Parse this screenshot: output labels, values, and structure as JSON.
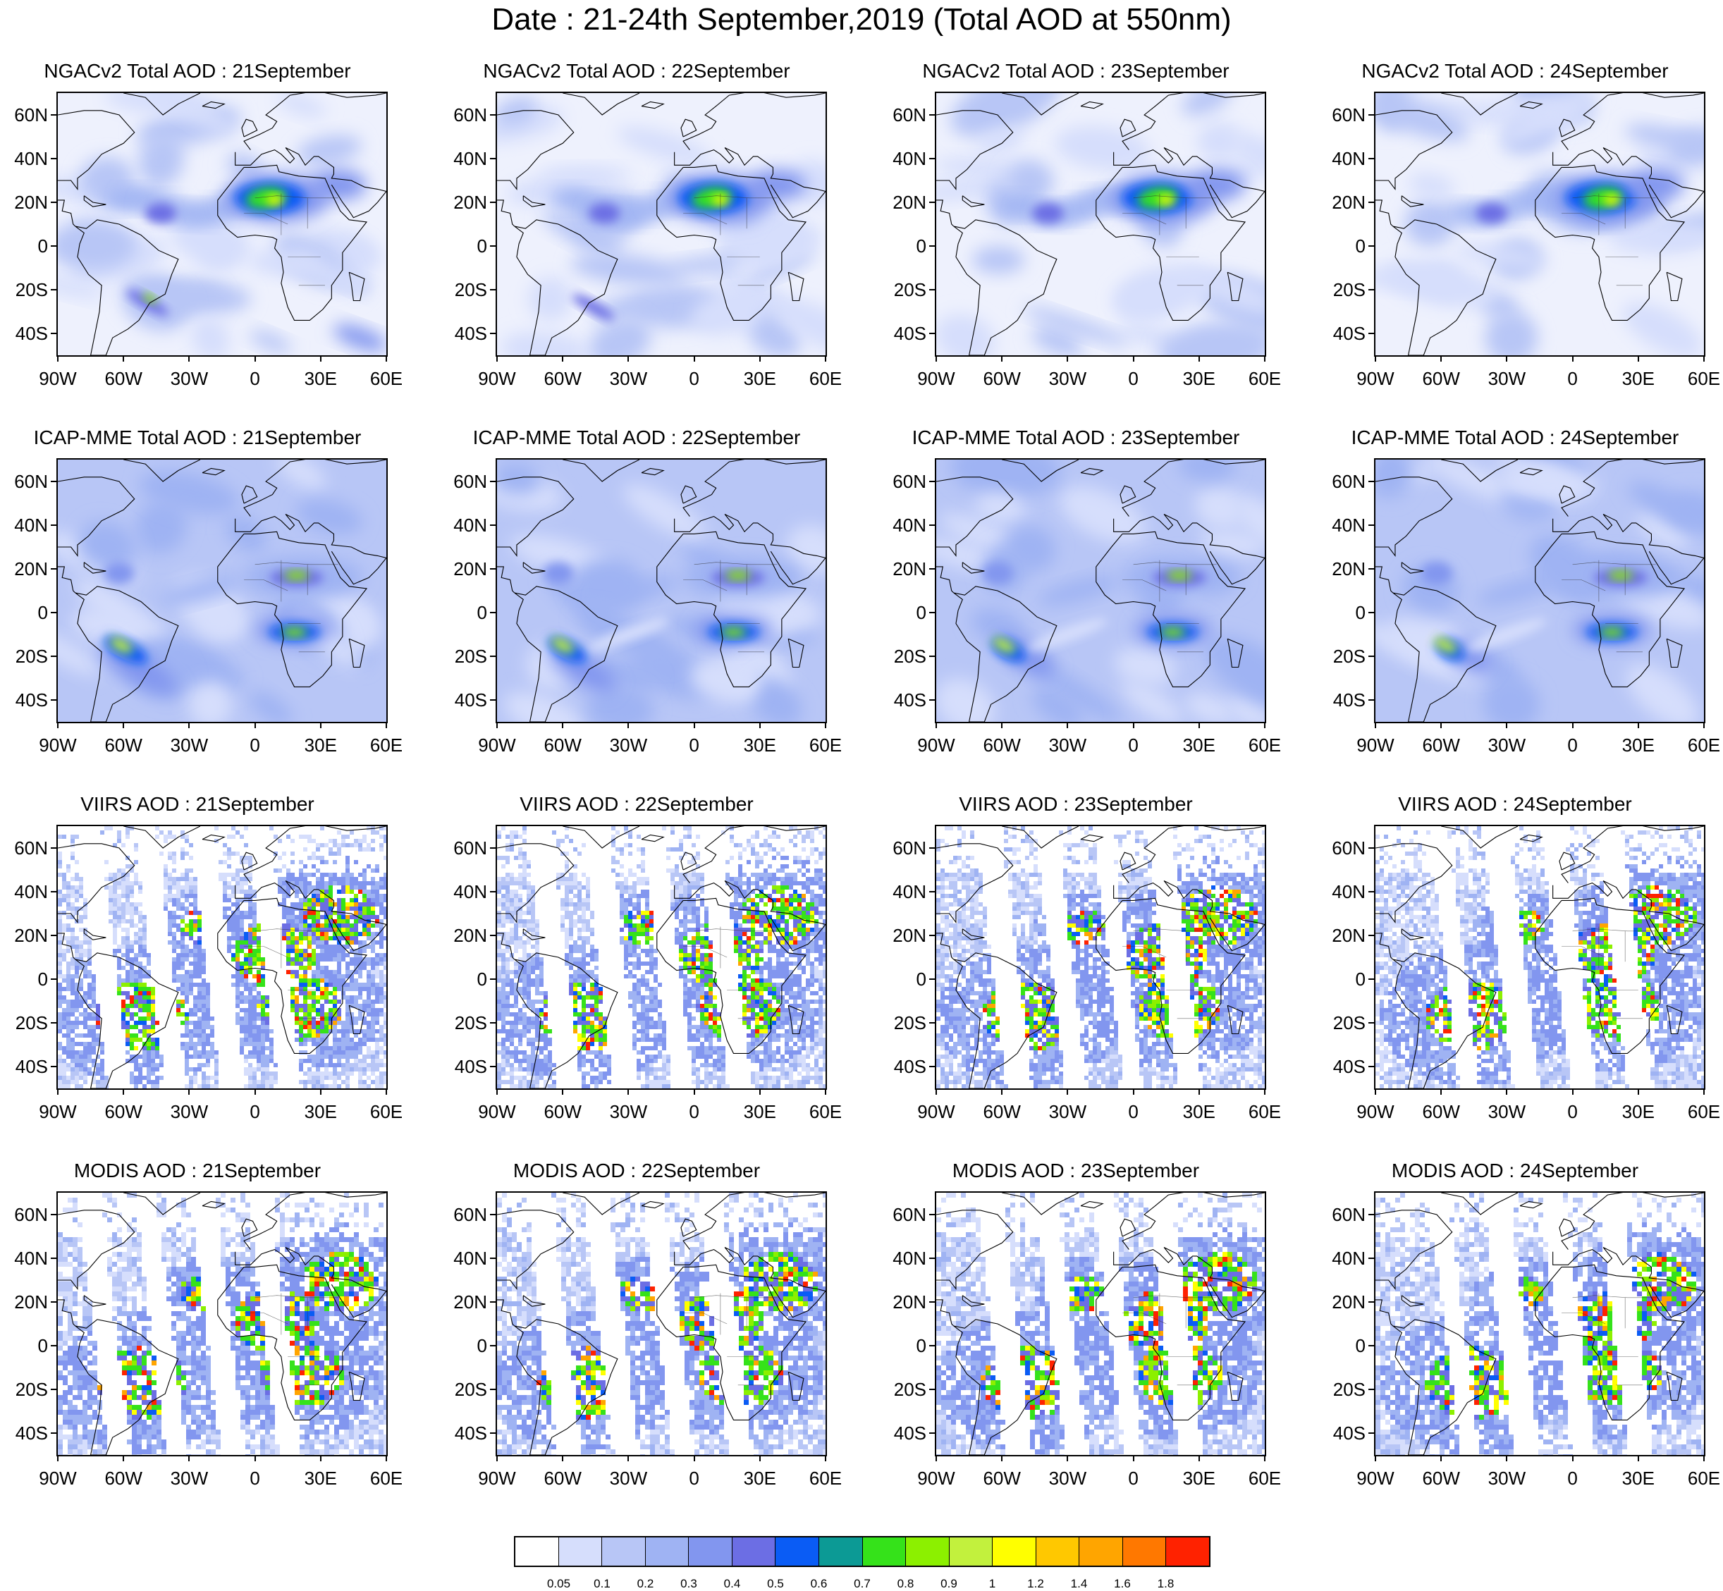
{
  "title": "Date : 21-24th September,2019 (Total AOD at 550nm)",
  "lat_labels": [
    "60N",
    "40N",
    "20N",
    "0",
    "20S",
    "40S"
  ],
  "lon_labels": [
    "90W",
    "60W",
    "30W",
    "0",
    "30E",
    "60E"
  ],
  "panels": [
    {
      "title": "NGACv2 Total AOD : 21September",
      "kind": "ngac"
    },
    {
      "title": "NGACv2 Total AOD : 22September",
      "kind": "ngac"
    },
    {
      "title": "NGACv2 Total AOD : 23September",
      "kind": "ngac"
    },
    {
      "title": "NGACv2 Total AOD : 24September",
      "kind": "ngac"
    },
    {
      "title": "ICAP-MME Total AOD : 21September",
      "kind": "icap"
    },
    {
      "title": "ICAP-MME Total AOD : 22September",
      "kind": "icap"
    },
    {
      "title": "ICAP-MME Total AOD : 23September",
      "kind": "icap"
    },
    {
      "title": "ICAP-MME Total AOD : 24September",
      "kind": "icap"
    },
    {
      "title": "VIIRS AOD : 21September",
      "kind": "viirs"
    },
    {
      "title": "VIIRS AOD : 22September",
      "kind": "viirs"
    },
    {
      "title": "VIIRS AOD : 23September",
      "kind": "viirs"
    },
    {
      "title": "VIIRS AOD : 24September",
      "kind": "viirs"
    },
    {
      "title": "MODIS AOD : 21September",
      "kind": "modis"
    },
    {
      "title": "MODIS AOD : 22September",
      "kind": "modis"
    },
    {
      "title": "MODIS AOD : 23September",
      "kind": "modis"
    },
    {
      "title": "MODIS AOD : 24September",
      "kind": "modis"
    }
  ],
  "colorbar": {
    "labels": [
      "0.05",
      "0.1",
      "0.2",
      "0.3",
      "0.4",
      "0.5",
      "0.6",
      "0.7",
      "0.8",
      "0.9",
      "1",
      "1.2",
      "1.4",
      "1.6",
      "1.8"
    ],
    "colors": [
      "#ffffff",
      "#d6defc",
      "#b8c6f6",
      "#9fb3f3",
      "#8296ef",
      "#6c6ee4",
      "#0a5cf5",
      "#0c9a95",
      "#35e21a",
      "#8cf000",
      "#c2f13d",
      "#ffff00",
      "#ffc800",
      "#ffa500",
      "#ff7800",
      "#ff2200"
    ]
  },
  "chart_data": {
    "type": "heatmap",
    "title": "Date : 21-24th September,2019 (Total AOD at 550nm)",
    "variable": "Total AOD at 550nm",
    "rows": [
      "NGACv2 Total AOD",
      "ICAP-MME Total AOD",
      "VIIRS AOD",
      "MODIS AOD"
    ],
    "columns": [
      "21September",
      "22September",
      "23September",
      "24September"
    ],
    "lon_range": [
      -90,
      60
    ],
    "lat_range": [
      -50,
      70
    ],
    "color_levels": [
      0.05,
      0.1,
      0.2,
      0.3,
      0.4,
      0.5,
      0.6,
      0.7,
      0.8,
      0.9,
      1,
      1.2,
      1.4,
      1.6,
      1.8
    ]
  }
}
